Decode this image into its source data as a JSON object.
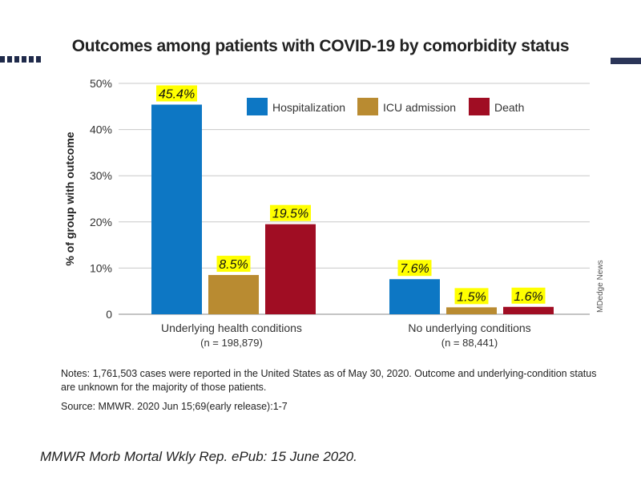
{
  "title": "Outcomes among patients with COVID-19 by comorbidity status",
  "notes": "Notes: 1,761,503 cases were reported in the United States as of May 30, 2020. Outcome and underlying-condition status are unknown for the majority of those patients.",
  "source": "Source: MMWR. 2020 Jun 15;69(early release):1-7",
  "citation": "MMWR Morb Mortal Wkly Rep. ePub: 15 June 2020.",
  "credit": "MDedge News",
  "chart_data": {
    "type": "bar",
    "title": "Outcomes among patients with COVID-19 by comorbidity status",
    "ylabel": "% of group with outcome",
    "ylim": [
      0,
      50
    ],
    "yticks": [
      "0",
      "10%",
      "20%",
      "30%",
      "40%",
      "50%"
    ],
    "ytick_values": [
      0,
      10,
      20,
      30,
      40,
      50
    ],
    "grid": true,
    "legend_position": "top-right",
    "categories": [
      "Underlying health conditions",
      "No underlying conditions"
    ],
    "category_sublabels": [
      "(n = 198,879)",
      "(n = 88,441)"
    ],
    "series": [
      {
        "name": "Hospitalization",
        "color": "#0d77c4",
        "values": [
          45.4,
          7.6
        ],
        "labels": [
          "45.4%",
          "7.6%"
        ]
      },
      {
        "name": "ICU admission",
        "color": "#b98b31",
        "values": [
          8.5,
          1.5
        ],
        "labels": [
          "8.5%",
          "1.5%"
        ]
      },
      {
        "name": "Death",
        "color": "#a00d23",
        "values": [
          19.5,
          1.6
        ],
        "labels": [
          "19.5%",
          "1.6%"
        ]
      }
    ],
    "data_label_highlight": "#ffff00"
  }
}
